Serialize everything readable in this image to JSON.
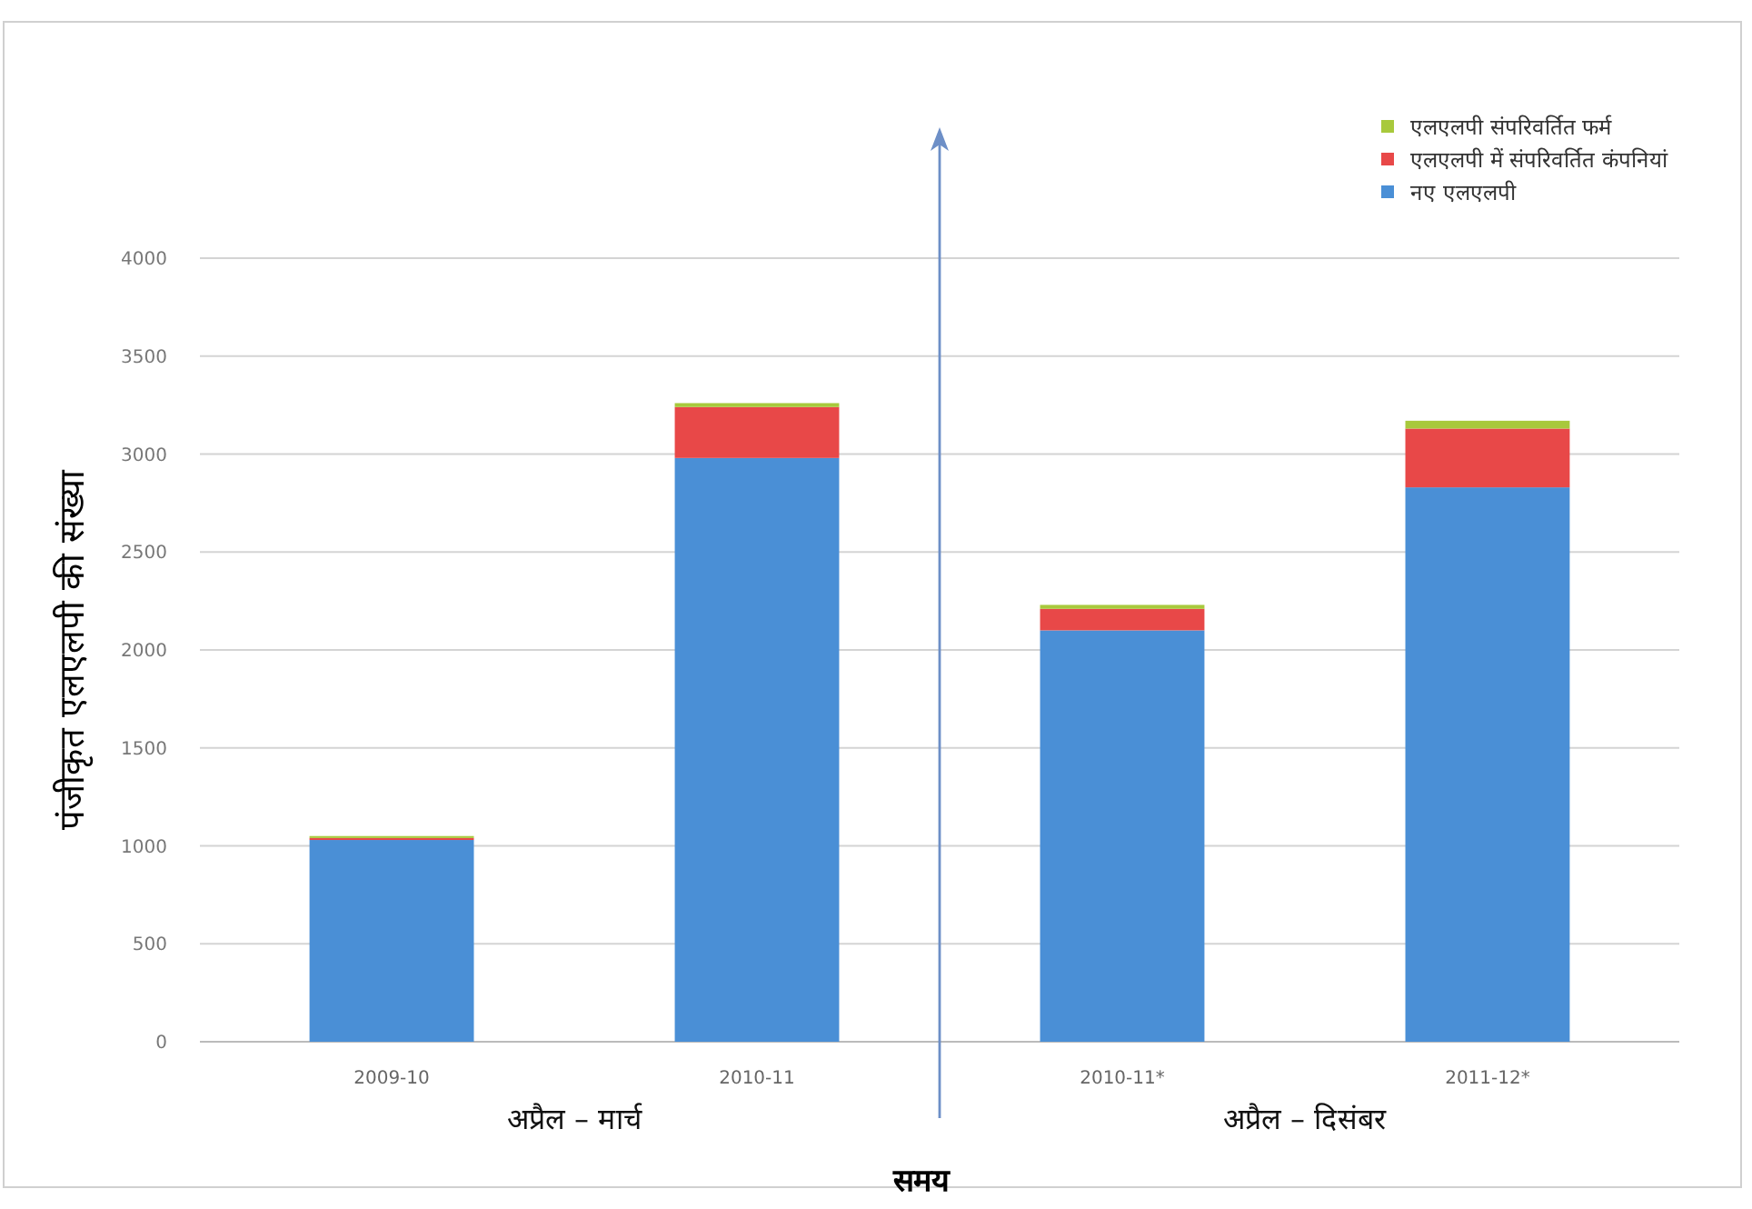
{
  "chart_data": {
    "type": "bar",
    "stacked": true,
    "xlabel": "समय",
    "ylabel": "पंजीकृत एलएलपी की संख्या",
    "categories": [
      "2009-10",
      "2010-11",
      "2010-11*",
      "2011-12*"
    ],
    "series": [
      {
        "name": "नए एलएलपी",
        "color": "#4a8fd6",
        "values": [
          1030,
          2980,
          2100,
          2830
        ]
      },
      {
        "name": "एलएलपी में संपरिवर्तित कंपनियां",
        "color": "#e84848",
        "values": [
          10,
          260,
          110,
          300
        ]
      },
      {
        "name": "एलएलपी संपरिवर्तित फर्म",
        "color": "#a8c93c",
        "values": [
          10,
          20,
          20,
          40
        ]
      }
    ],
    "ylim": [
      0,
      4000
    ],
    "yticks": [
      0,
      500,
      1000,
      1500,
      2000,
      2500,
      3000,
      3500,
      4000
    ],
    "grid": "y",
    "legend": "top right",
    "annotations": [
      "अप्रैल – मार्च",
      "अप्रैल – दिसंबर"
    ]
  }
}
